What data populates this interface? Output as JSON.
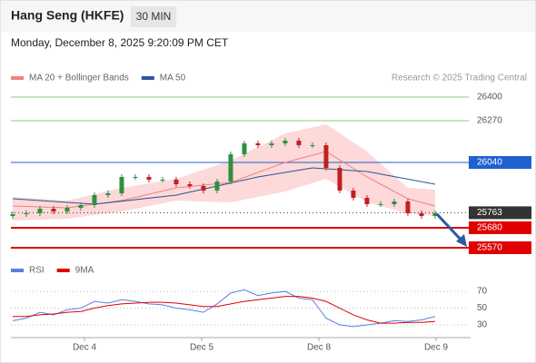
{
  "header": {
    "title": "Hang Seng (HKFE)",
    "interval": "30 MIN",
    "timestamp": "Monday, December 8, 2025 9:20:09 PM CET",
    "credit": "Research © 2025 Trading Central"
  },
  "chart_data": [
    {
      "type": "candlestick",
      "legend": [
        {
          "name": "MA 20 + Bollinger Bands",
          "color": "#f08080"
        },
        {
          "name": "MA 50",
          "color": "#2a5599"
        }
      ],
      "x": [
        0,
        1,
        2,
        3,
        4,
        5,
        6,
        7,
        8,
        9,
        10,
        11,
        12,
        13,
        14,
        15,
        16,
        17,
        18,
        19,
        20,
        21,
        22,
        23,
        24,
        25,
        26,
        27,
        28,
        29,
        30,
        31
      ],
      "open": [
        25745,
        25755,
        25760,
        25785,
        25770,
        25790,
        25805,
        25860,
        25870,
        25960,
        25960,
        25945,
        25945,
        25920,
        25910,
        25885,
        25935,
        26085,
        26145,
        26135,
        26145,
        26160,
        26135,
        26135,
        26010,
        25885,
        25845,
        25810,
        25810,
        25825,
        25760,
        25745
      ],
      "high": [
        25770,
        25775,
        25800,
        25800,
        25805,
        25820,
        25875,
        25885,
        25975,
        25975,
        25975,
        25960,
        25960,
        25935,
        25925,
        25950,
        26100,
        26160,
        26160,
        26160,
        26175,
        26175,
        26150,
        26150,
        26025,
        25900,
        25860,
        25825,
        25840,
        25840,
        25775,
        25775
      ],
      "low": [
        25730,
        25740,
        25745,
        25755,
        25755,
        25775,
        25790,
        25845,
        25855,
        25945,
        25930,
        25930,
        25905,
        25895,
        25870,
        25870,
        25920,
        26070,
        26120,
        26120,
        26130,
        26120,
        26120,
        25995,
        25870,
        25830,
        25795,
        25795,
        25795,
        25745,
        25730,
        25730
      ],
      "close": [
        25755,
        25760,
        25785,
        25770,
        25790,
        25805,
        25860,
        25870,
        25960,
        25960,
        25945,
        25945,
        25920,
        25910,
        25885,
        25935,
        26085,
        26145,
        26135,
        26145,
        26160,
        26135,
        26135,
        26010,
        25885,
        25845,
        25810,
        25810,
        25825,
        25760,
        25745,
        25760
      ],
      "bands": {
        "color": "#fdd9d9",
        "x": [
          0,
          4,
          8,
          12,
          16,
          20,
          23,
          26,
          29,
          31
        ],
        "upper": [
          25850,
          25830,
          25900,
          25950,
          26050,
          26200,
          26250,
          26100,
          25900,
          25890
        ],
        "lower": [
          25720,
          25730,
          25770,
          25830,
          25820,
          25880,
          25950,
          25820,
          25760,
          25745
        ]
      },
      "lines": [
        {
          "name": "MA 20",
          "color": "#f08080",
          "x": [
            0,
            4,
            8,
            12,
            16,
            20,
            23,
            26,
            29,
            31
          ],
          "values": [
            25800,
            25790,
            25830,
            25900,
            25930,
            26040,
            26100,
            25960,
            25840,
            25800
          ]
        },
        {
          "name": "MA 50",
          "color": "#2a5599",
          "x": [
            0,
            6,
            12,
            18,
            22,
            26,
            31
          ],
          "values": [
            25840,
            25810,
            25860,
            25960,
            26010,
            25990,
            25920
          ]
        }
      ],
      "levels": [
        {
          "value": 26400,
          "color": "#8cc870",
          "boxed": false
        },
        {
          "value": 26270,
          "color": "#8cc870",
          "boxed": false
        },
        {
          "value": 26040,
          "color": "#2060d0",
          "boxed": true
        },
        {
          "value": 25763,
          "color": "#333333",
          "boxed": true
        },
        {
          "value": 25680,
          "color": "#e00000",
          "boxed": true
        },
        {
          "value": 25570,
          "color": "#e00000",
          "boxed": true
        }
      ],
      "xlim": [
        -0.13,
        33.07
      ],
      "ylim": [
        25510,
        26460
      ]
    },
    {
      "type": "line",
      "x": [
        0,
        1,
        2,
        3,
        4,
        5,
        6,
        7,
        8,
        9,
        10,
        11,
        12,
        13,
        14,
        15,
        16,
        17,
        18,
        19,
        20,
        21,
        22,
        23,
        24,
        25,
        26,
        27,
        28,
        29,
        30,
        31
      ],
      "series": [
        {
          "name": "RSI",
          "color": "#5b7fe0",
          "values": [
            35,
            38,
            45,
            42,
            48,
            50,
            58,
            56,
            60,
            58,
            55,
            54,
            50,
            48,
            45,
            55,
            68,
            72,
            65,
            68,
            70,
            62,
            60,
            38,
            30,
            28,
            30,
            32,
            35,
            34,
            36,
            40
          ]
        },
        {
          "name": "9MA",
          "color": "#e00000",
          "values": [
            40,
            40,
            42,
            43,
            45,
            46,
            50,
            53,
            55,
            56,
            57,
            57,
            56,
            54,
            52,
            52,
            55,
            58,
            60,
            62,
            64,
            64,
            62,
            58,
            50,
            42,
            36,
            32,
            32,
            33,
            33,
            34
          ]
        }
      ],
      "xlim": [
        -0.13,
        33.07
      ],
      "ylim": [
        17,
        82
      ],
      "yticks": [
        30,
        50,
        70
      ],
      "xticks": [
        {
          "value": 5.27,
          "label": "Dec 4"
        },
        {
          "value": 13.87,
          "label": "Dec 5"
        },
        {
          "value": 22.47,
          "label": "Dec 8"
        },
        {
          "value": 31.07,
          "label": "Dec 9"
        }
      ]
    }
  ]
}
